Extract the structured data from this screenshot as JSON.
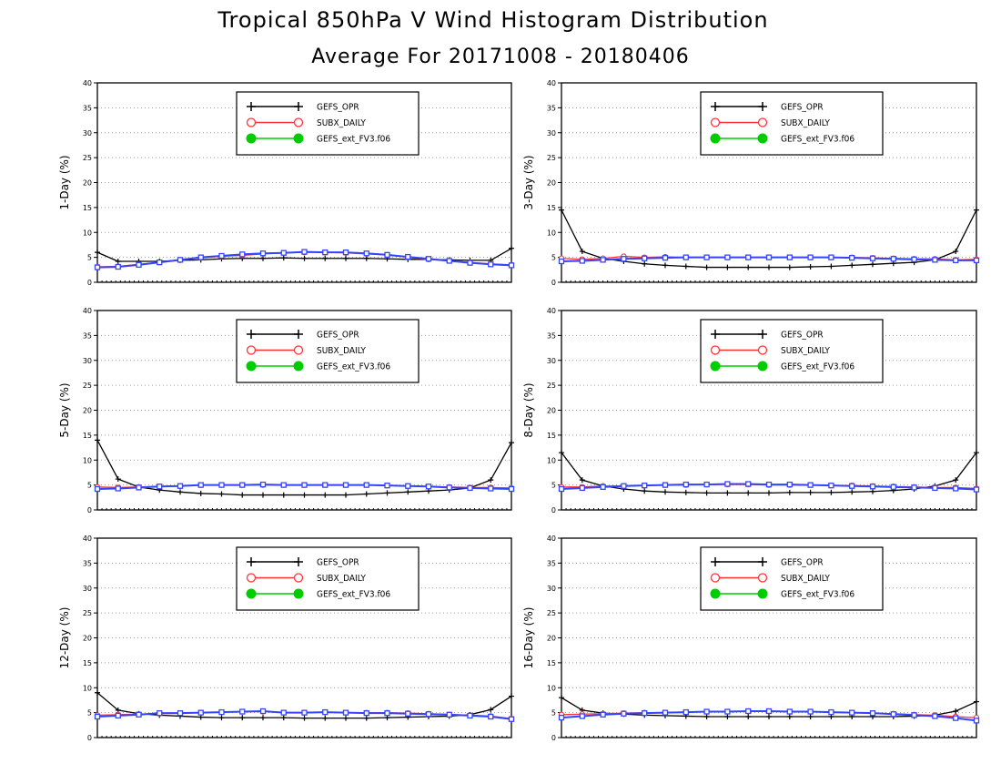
{
  "title": "Tropical 850hPa V Wind Histogram Distribution",
  "subtitle": "Average For 20171008 - 20180406",
  "legend_entries": [
    {
      "name": "GEFS_OPR",
      "marker": "plus",
      "color": "#000000"
    },
    {
      "name": "SUBX_DAILY",
      "marker": "open-circle",
      "color": "#ff3333"
    },
    {
      "name": "GEFS_ext_FV3.f06",
      "marker": "filled-circle",
      "color": "#00dd00"
    }
  ],
  "overlay_series_color": "#3344ff",
  "chart_data": [
    {
      "type": "line",
      "ylabel": "1-Day (%)",
      "ylim": [
        0,
        40
      ],
      "yticks": [
        0,
        5,
        10,
        15,
        20,
        25,
        30,
        35,
        40
      ],
      "grid": true,
      "legend": "top-center",
      "x": [
        1,
        2,
        3,
        4,
        5,
        6,
        7,
        8,
        9,
        10,
        11,
        12,
        13,
        14,
        15,
        16,
        17,
        18,
        19,
        20,
        21
      ],
      "series": [
        {
          "name": "GEFS_OPR",
          "values": [
            6.0,
            4.2,
            4.2,
            4.2,
            4.4,
            4.5,
            4.7,
            4.8,
            4.8,
            4.9,
            4.8,
            4.8,
            4.8,
            4.8,
            4.7,
            4.6,
            4.6,
            4.5,
            4.4,
            4.4,
            6.8
          ]
        },
        {
          "name": "SUBX_DAILY",
          "values": [
            3.1,
            3.2,
            3.6,
            4.0,
            4.5,
            4.9,
            5.2,
            5.4,
            5.7,
            5.9,
            6.0,
            6.0,
            5.9,
            5.7,
            5.5,
            5.0,
            4.6,
            4.3,
            4.0,
            3.7,
            3.5
          ]
        },
        {
          "name": "GEFS_ext_FV3.f06",
          "values": [
            3.0,
            3.1,
            3.5,
            4.0,
            4.5,
            5.0,
            5.3,
            5.6,
            5.8,
            5.9,
            6.1,
            6.0,
            6.0,
            5.8,
            5.5,
            5.1,
            4.7,
            4.3,
            3.9,
            3.6,
            3.4
          ]
        }
      ]
    },
    {
      "type": "line",
      "ylabel": "3-Day (%)",
      "ylim": [
        0,
        40
      ],
      "yticks": [
        0,
        5,
        10,
        15,
        20,
        25,
        30,
        35,
        40
      ],
      "grid": true,
      "legend": "top-center",
      "x": [
        1,
        2,
        3,
        4,
        5,
        6,
        7,
        8,
        9,
        10,
        11,
        12,
        13,
        14,
        15,
        16,
        17,
        18,
        19,
        20,
        21
      ],
      "series": [
        {
          "name": "GEFS_OPR",
          "values": [
            14.5,
            6.2,
            4.8,
            4.2,
            3.7,
            3.4,
            3.2,
            3.0,
            3.0,
            3.0,
            3.0,
            3.0,
            3.1,
            3.2,
            3.4,
            3.6,
            3.8,
            4.0,
            4.5,
            6.2,
            14.5
          ]
        },
        {
          "name": "SUBX_DAILY",
          "values": [
            4.8,
            4.6,
            4.8,
            5.2,
            5.0,
            5.1,
            5.0,
            5.0,
            5.0,
            5.0,
            5.0,
            5.0,
            5.0,
            5.0,
            5.0,
            4.9,
            4.8,
            4.7,
            4.7,
            4.5,
            4.6
          ]
        },
        {
          "name": "GEFS_ext_FV3.f06",
          "values": [
            4.2,
            4.3,
            4.5,
            4.7,
            4.8,
            4.9,
            5.0,
            5.0,
            5.0,
            5.0,
            5.0,
            5.0,
            5.0,
            5.0,
            4.9,
            4.8,
            4.7,
            4.6,
            4.5,
            4.4,
            4.4
          ]
        }
      ]
    },
    {
      "type": "line",
      "ylabel": "5-Day (%)",
      "ylim": [
        0,
        40
      ],
      "yticks": [
        0,
        5,
        10,
        15,
        20,
        25,
        30,
        35,
        40
      ],
      "grid": true,
      "legend": "top-center",
      "x": [
        1,
        2,
        3,
        4,
        5,
        6,
        7,
        8,
        9,
        10,
        11,
        12,
        13,
        14,
        15,
        16,
        17,
        18,
        19,
        20,
        21
      ],
      "series": [
        {
          "name": "GEFS_OPR",
          "values": [
            14.0,
            6.2,
            4.6,
            4.0,
            3.6,
            3.3,
            3.2,
            3.0,
            3.0,
            3.0,
            3.0,
            3.0,
            3.0,
            3.2,
            3.4,
            3.6,
            3.8,
            4.0,
            4.4,
            6.0,
            13.5
          ]
        },
        {
          "name": "SUBX_DAILY",
          "values": [
            4.6,
            4.5,
            4.6,
            4.7,
            4.8,
            5.0,
            5.0,
            5.0,
            5.0,
            5.0,
            5.0,
            5.0,
            5.0,
            5.0,
            4.9,
            4.8,
            4.7,
            4.6,
            4.5,
            4.5,
            4.4
          ]
        },
        {
          "name": "GEFS_ext_FV3.f06",
          "values": [
            4.2,
            4.3,
            4.5,
            4.7,
            4.8,
            5.0,
            5.0,
            5.0,
            5.1,
            5.0,
            5.0,
            5.0,
            5.0,
            5.0,
            4.9,
            4.8,
            4.7,
            4.5,
            4.4,
            4.3,
            4.2
          ]
        }
      ]
    },
    {
      "type": "line",
      "ylabel": "8-Day (%)",
      "ylim": [
        0,
        40
      ],
      "yticks": [
        0,
        5,
        10,
        15,
        20,
        25,
        30,
        35,
        40
      ],
      "grid": true,
      "legend": "top-center",
      "x": [
        1,
        2,
        3,
        4,
        5,
        6,
        7,
        8,
        9,
        10,
        11,
        12,
        13,
        14,
        15,
        16,
        17,
        18,
        19,
        20,
        21
      ],
      "series": [
        {
          "name": "GEFS_OPR",
          "values": [
            11.5,
            6.0,
            4.8,
            4.2,
            3.8,
            3.6,
            3.5,
            3.4,
            3.4,
            3.4,
            3.4,
            3.5,
            3.5,
            3.5,
            3.6,
            3.7,
            3.9,
            4.2,
            4.8,
            6.0,
            11.5
          ]
        },
        {
          "name": "SUBX_DAILY",
          "values": [
            4.6,
            4.6,
            4.8,
            4.8,
            4.9,
            5.0,
            5.0,
            5.1,
            5.1,
            5.1,
            5.0,
            5.0,
            5.0,
            4.9,
            4.9,
            4.8,
            4.7,
            4.6,
            4.5,
            4.5,
            4.3
          ]
        },
        {
          "name": "GEFS_ext_FV3.f06",
          "values": [
            4.2,
            4.4,
            4.6,
            4.8,
            4.9,
            5.0,
            5.1,
            5.1,
            5.2,
            5.2,
            5.1,
            5.1,
            5.0,
            4.9,
            4.8,
            4.7,
            4.6,
            4.5,
            4.4,
            4.3,
            4.1
          ]
        }
      ]
    },
    {
      "type": "line",
      "ylabel": "12-Day (%)",
      "ylim": [
        0,
        40
      ],
      "yticks": [
        0,
        5,
        10,
        15,
        20,
        25,
        30,
        35,
        40
      ],
      "grid": true,
      "legend": "top-center",
      "x": [
        1,
        2,
        3,
        4,
        5,
        6,
        7,
        8,
        9,
        10,
        11,
        12,
        13,
        14,
        15,
        16,
        17,
        18,
        19,
        20,
        21
      ],
      "series": [
        {
          "name": "GEFS_OPR",
          "values": [
            9.0,
            5.5,
            4.8,
            4.5,
            4.3,
            4.1,
            4.0,
            4.0,
            4.0,
            4.0,
            3.9,
            3.9,
            3.9,
            3.9,
            4.0,
            4.1,
            4.2,
            4.3,
            4.6,
            5.6,
            8.3
          ]
        },
        {
          "name": "SUBX_DAILY",
          "values": [
            4.5,
            4.6,
            4.7,
            4.8,
            4.9,
            5.0,
            5.1,
            5.2,
            5.2,
            5.0,
            5.0,
            5.1,
            5.0,
            5.0,
            5.0,
            4.9,
            4.8,
            4.6,
            4.5,
            4.3,
            3.8
          ]
        },
        {
          "name": "GEFS_ext_FV3.f06",
          "values": [
            4.2,
            4.4,
            4.6,
            4.9,
            4.9,
            5.0,
            5.1,
            5.2,
            5.3,
            5.0,
            5.0,
            5.1,
            5.0,
            4.9,
            4.9,
            4.8,
            4.7,
            4.6,
            4.4,
            4.2,
            3.7
          ]
        }
      ]
    },
    {
      "type": "line",
      "ylabel": "16-Day (%)",
      "ylim": [
        0,
        40
      ],
      "yticks": [
        0,
        5,
        10,
        15,
        20,
        25,
        30,
        35,
        40
      ],
      "grid": true,
      "legend": "top-center",
      "x": [
        1,
        2,
        3,
        4,
        5,
        6,
        7,
        8,
        9,
        10,
        11,
        12,
        13,
        14,
        15,
        16,
        17,
        18,
        19,
        20,
        21
      ],
      "series": [
        {
          "name": "GEFS_OPR",
          "values": [
            8.0,
            5.5,
            4.9,
            4.7,
            4.5,
            4.4,
            4.3,
            4.2,
            4.2,
            4.2,
            4.2,
            4.2,
            4.2,
            4.2,
            4.2,
            4.2,
            4.2,
            4.3,
            4.5,
            5.3,
            7.2
          ]
        },
        {
          "name": "SUBX_DAILY",
          "values": [
            4.6,
            4.7,
            4.8,
            4.9,
            5.0,
            5.0,
            5.1,
            5.2,
            5.2,
            5.3,
            5.3,
            5.2,
            5.2,
            5.1,
            5.0,
            4.9,
            4.8,
            4.6,
            4.5,
            4.2,
            4.0
          ]
        },
        {
          "name": "GEFS_ext_FV3.f06",
          "values": [
            4.0,
            4.3,
            4.6,
            4.8,
            4.9,
            5.0,
            5.1,
            5.2,
            5.2,
            5.3,
            5.3,
            5.2,
            5.2,
            5.1,
            5.0,
            4.9,
            4.7,
            4.5,
            4.3,
            3.9,
            3.4
          ]
        }
      ]
    }
  ]
}
